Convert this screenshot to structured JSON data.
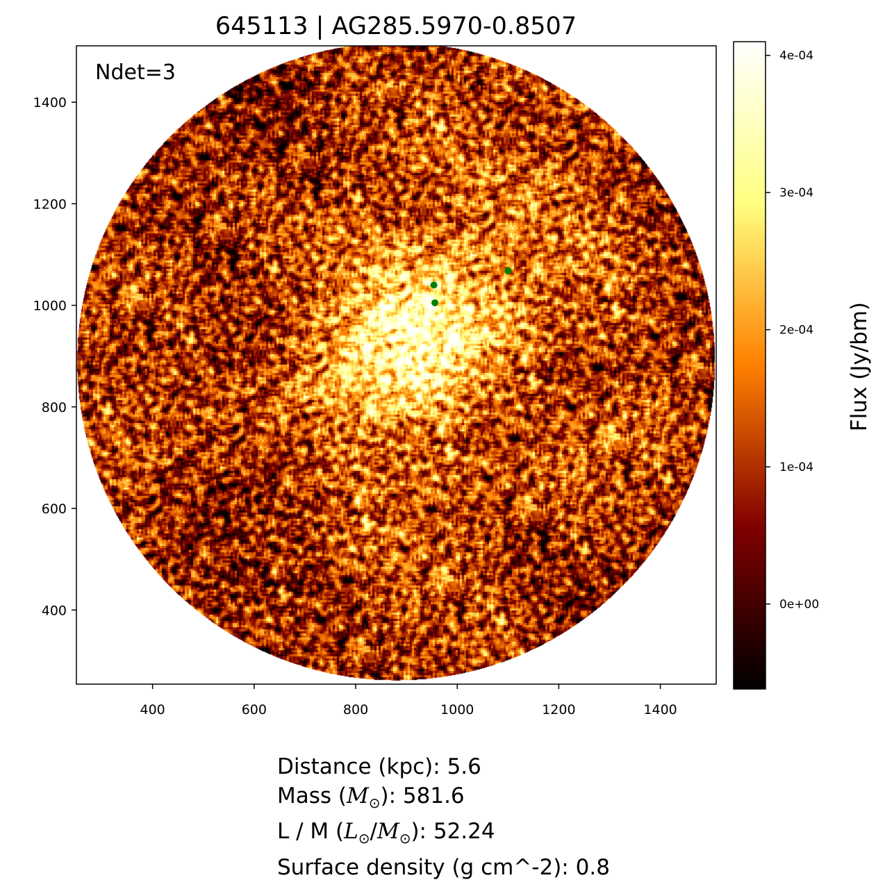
{
  "chart_data": {
    "type": "heatmap",
    "title": "645113 | AG285.5970-0.8507",
    "annotation": "Ndet=3",
    "xlim": [
      250,
      1510
    ],
    "ylim": [
      254,
      1511
    ],
    "xticks": [
      400,
      600,
      800,
      1000,
      1200,
      1400
    ],
    "yticks": [
      400,
      600,
      800,
      1000,
      1200,
      1400
    ],
    "xtick_labels": [
      "400",
      "600",
      "800",
      "1000",
      "1200",
      "1400"
    ],
    "ytick_labels": [
      "400",
      "600",
      "800",
      "1000",
      "1200",
      "1400"
    ],
    "image": {
      "shape": "circular field",
      "center": [
        879,
        890
      ],
      "radius": 628,
      "bright_region_center": [
        930,
        940
      ]
    },
    "detections": {
      "color": "#008000",
      "points": [
        {
          "x": 954,
          "y": 1040
        },
        {
          "x": 956,
          "y": 1005
        },
        {
          "x": 1100,
          "y": 1068
        }
      ]
    },
    "colorbar": {
      "label": "Flux (Jy/bm)",
      "colormap": "afmhot",
      "vmin": -6.2e-05,
      "vmax": 0.00041,
      "ticks": [
        0,
        0.0001,
        0.0002,
        0.0003,
        0.0004
      ],
      "tick_labels": [
        "0e+00",
        "1e-04",
        "2e-04",
        "3e-04",
        "4e-04"
      ]
    },
    "grid": false
  },
  "info": {
    "distance": "Distance (kpc): 5.6",
    "mass_prefix": "Mass (",
    "mass_suffix": "): 581.6",
    "lm_prefix": "L / M (",
    "lm_suffix": "): 52.24",
    "surface_density": "Surface density (g cm^-2): 0.8",
    "m_symbol": "M",
    "l_symbol": "L",
    "sun_symbol": "⊙"
  }
}
